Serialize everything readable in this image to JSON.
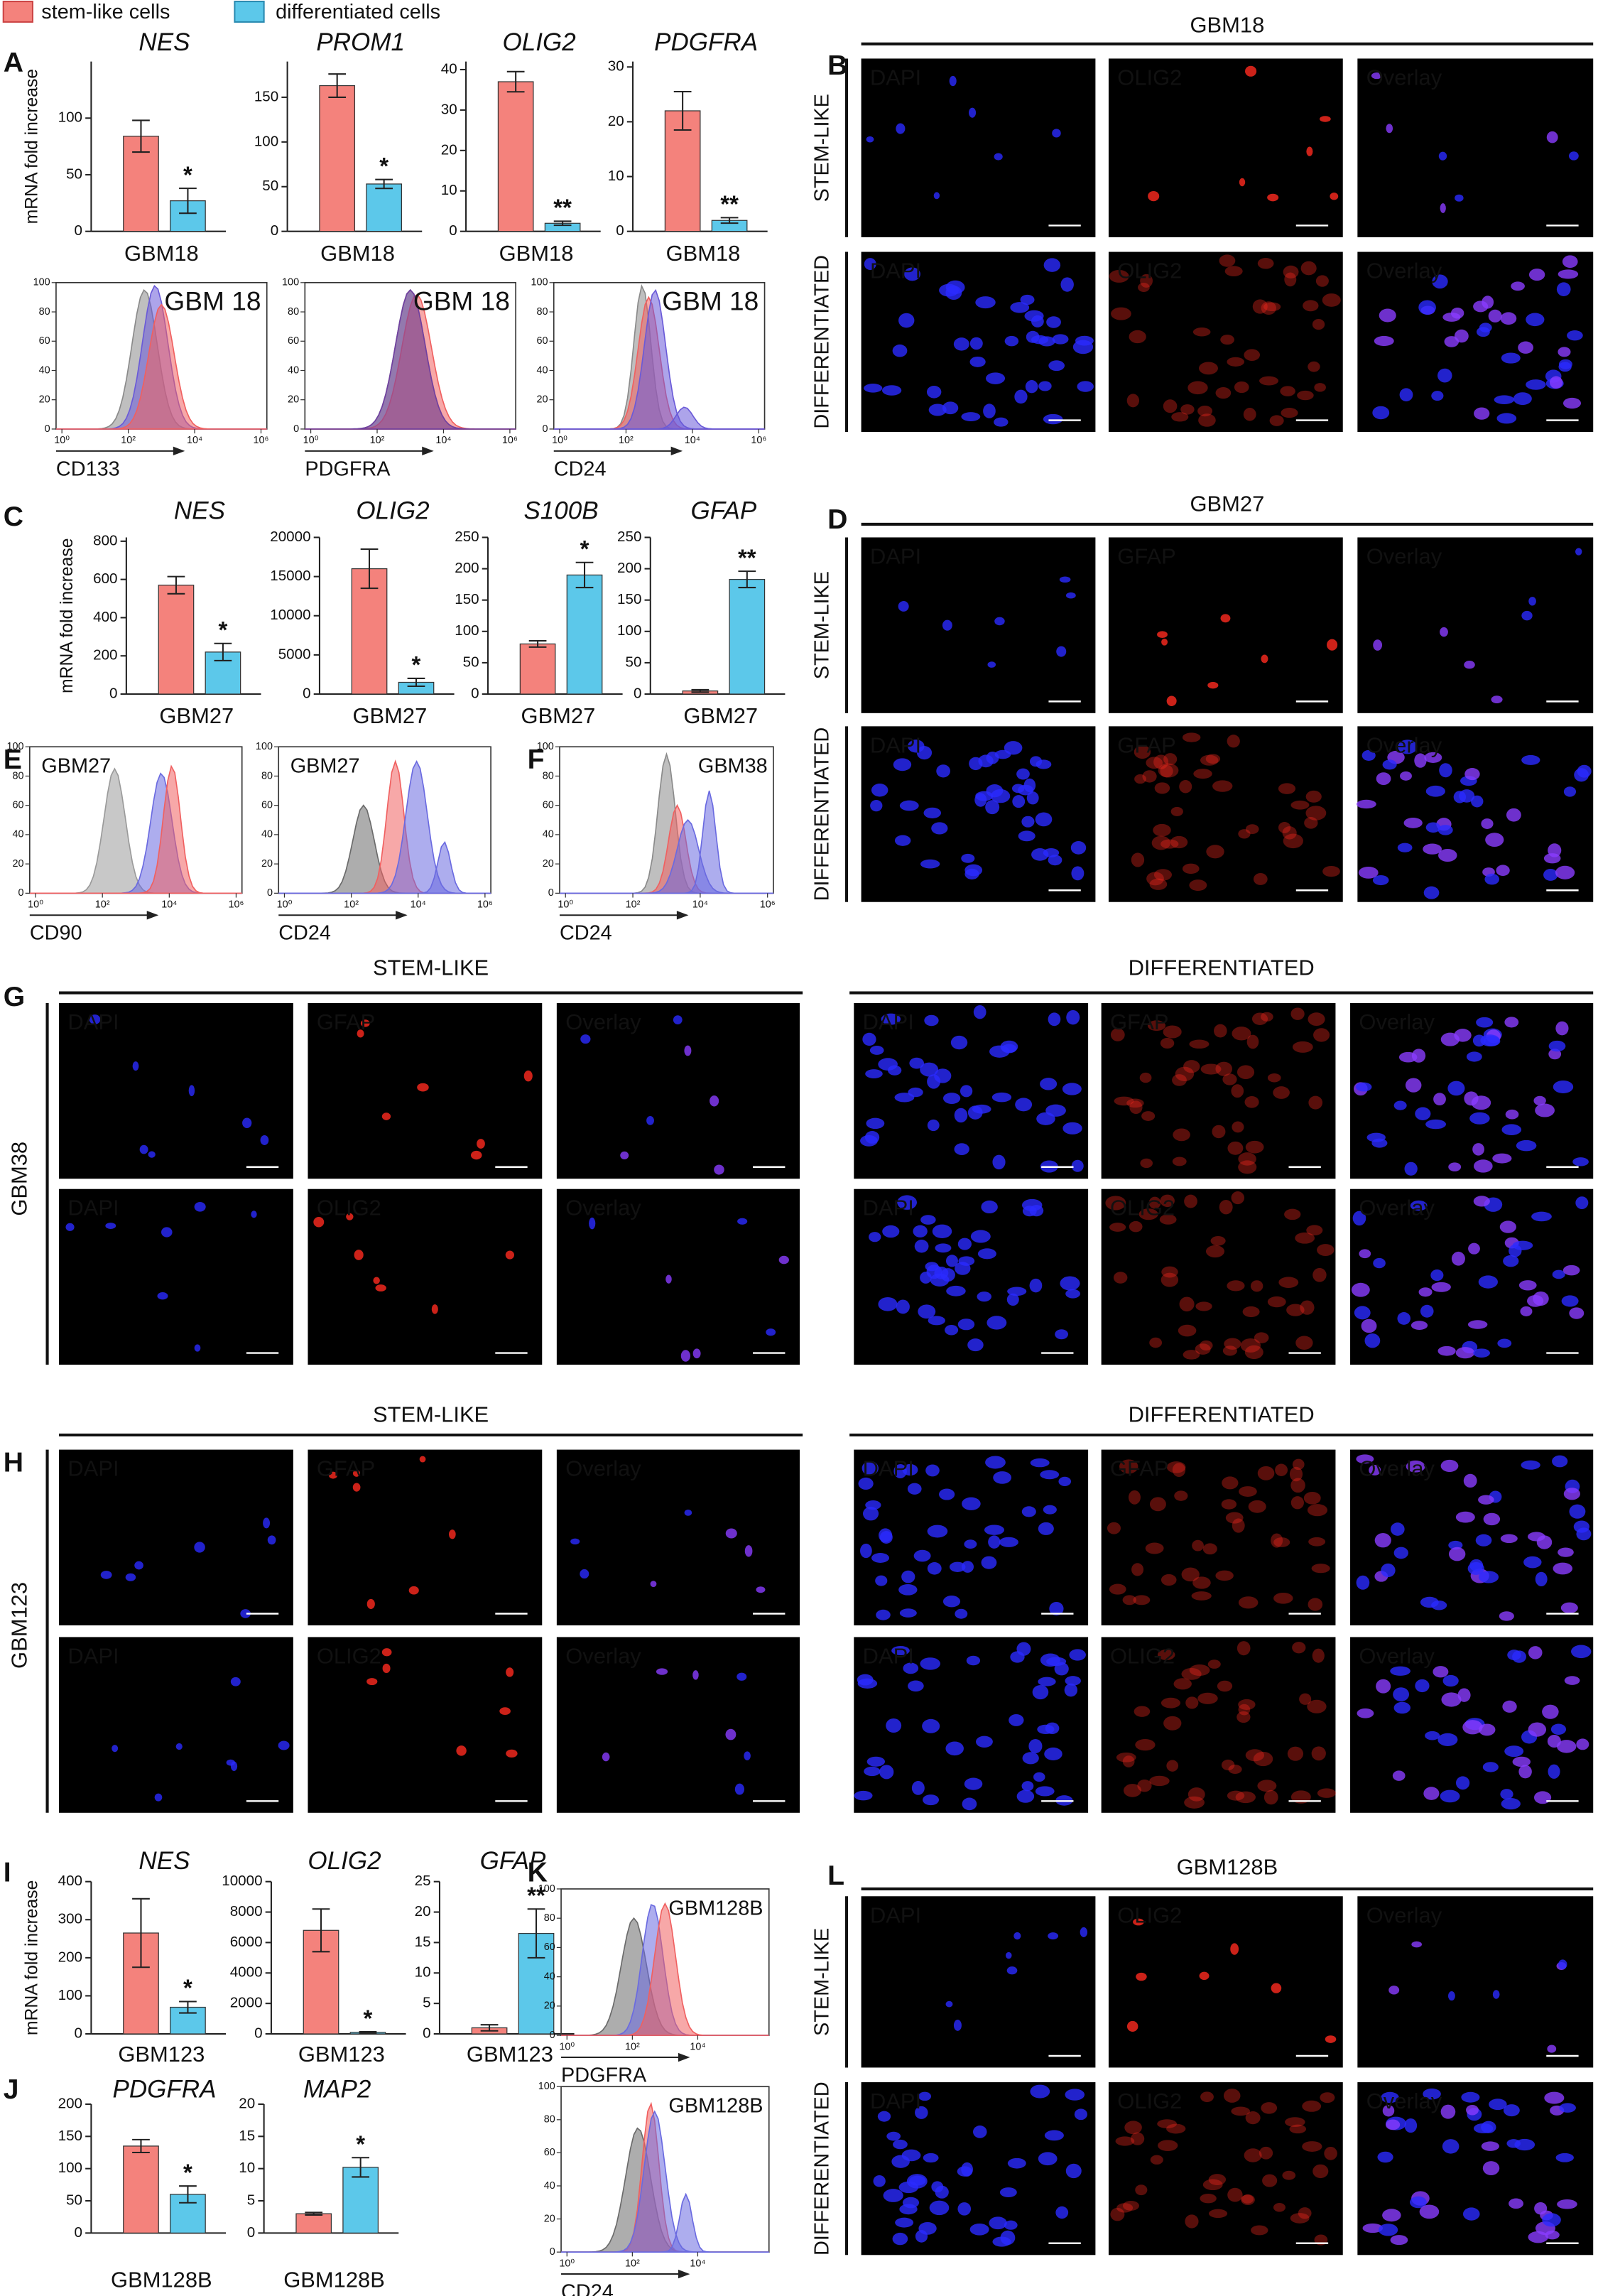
{
  "chart_data": [
    {
      "type": "bar",
      "title": "NES",
      "ylabel": "mRNA fold increase",
      "categories": [
        "GBM18"
      ],
      "ylim": [
        0,
        150
      ],
      "yticks": [
        0,
        50,
        100
      ],
      "annotation": "*",
      "series": [
        {
          "name": "stem-like cells",
          "color": "#f4827c",
          "values": [
            84
          ],
          "errors": [
            14
          ]
        },
        {
          "name": "differentiated cells",
          "color": "#5cc8ea",
          "values": [
            27
          ],
          "errors": [
            11
          ]
        }
      ]
    },
    {
      "type": "bar",
      "title": "PROM1",
      "categories": [
        "GBM18"
      ],
      "ylim": [
        0,
        190
      ],
      "yticks": [
        0,
        50,
        100,
        150
      ],
      "annotation": "*",
      "series": [
        {
          "color": "#f4827c",
          "values": [
            163
          ],
          "errors": [
            13
          ]
        },
        {
          "color": "#5cc8ea",
          "values": [
            53
          ],
          "errors": [
            5
          ]
        }
      ]
    },
    {
      "type": "bar",
      "title": "OLIG2",
      "categories": [
        "GBM18"
      ],
      "ylim": [
        0,
        42
      ],
      "yticks": [
        0,
        10,
        20,
        30,
        40
      ],
      "annotation": "**",
      "series": [
        {
          "color": "#f4827c",
          "values": [
            37
          ],
          "errors": [
            2.5
          ]
        },
        {
          "color": "#5cc8ea",
          "values": [
            2
          ],
          "errors": [
            0.5
          ]
        }
      ]
    },
    {
      "type": "bar",
      "title": "PDGFRA",
      "categories": [
        "GBM18"
      ],
      "ylim": [
        0,
        31
      ],
      "yticks": [
        0,
        10,
        20,
        30
      ],
      "annotation": "**",
      "series": [
        {
          "color": "#f4827c",
          "values": [
            22
          ],
          "errors": [
            3.5
          ]
        },
        {
          "color": "#5cc8ea",
          "values": [
            2
          ],
          "errors": [
            0.5
          ]
        }
      ]
    },
    {
      "type": "bar",
      "title": "NES",
      "ylabel": "mRNA fold increase",
      "categories": [
        "GBM27"
      ],
      "ylim": [
        0,
        820
      ],
      "yticks": [
        0,
        200,
        400,
        600,
        800
      ],
      "annotation": "*",
      "series": [
        {
          "color": "#f4827c",
          "values": [
            570
          ],
          "errors": [
            45
          ]
        },
        {
          "color": "#5cc8ea",
          "values": [
            220
          ],
          "errors": [
            45
          ]
        }
      ]
    },
    {
      "type": "bar",
      "title": "OLIG2",
      "categories": [
        "GBM27"
      ],
      "ylim": [
        0,
        20000
      ],
      "yticks": [
        0,
        5000,
        10000,
        15000,
        20000
      ],
      "annotation": "*",
      "series": [
        {
          "color": "#f4827c",
          "values": [
            16000
          ],
          "errors": [
            2500
          ]
        },
        {
          "color": "#5cc8ea",
          "values": [
            1500
          ],
          "errors": [
            500
          ]
        }
      ]
    },
    {
      "type": "bar",
      "title": "S100B",
      "categories": [
        "GBM27"
      ],
      "ylim": [
        0,
        250
      ],
      "yticks": [
        0,
        50,
        100,
        150,
        200,
        250
      ],
      "annotation": "*",
      "series": [
        {
          "color": "#f4827c",
          "values": [
            80
          ],
          "errors": [
            5
          ]
        },
        {
          "color": "#5cc8ea",
          "values": [
            190
          ],
          "errors": [
            20
          ]
        }
      ]
    },
    {
      "type": "bar",
      "title": "GFAP",
      "categories": [
        "GBM27"
      ],
      "ylim": [
        0,
        250
      ],
      "yticks": [
        0,
        50,
        100,
        150,
        200,
        250
      ],
      "annotation": "**",
      "series": [
        {
          "color": "#f4827c",
          "values": [
            5
          ],
          "errors": [
            2
          ]
        },
        {
          "color": "#5cc8ea",
          "values": [
            183
          ],
          "errors": [
            13
          ]
        }
      ]
    },
    {
      "type": "bar",
      "title": "NES",
      "ylabel": "mRNA fold increase",
      "categories": [
        "GBM123"
      ],
      "ylim": [
        0,
        400
      ],
      "yticks": [
        0,
        100,
        200,
        300,
        400
      ],
      "annotation": "*",
      "series": [
        {
          "color": "#f4827c",
          "values": [
            265
          ],
          "errors": [
            90
          ]
        },
        {
          "color": "#5cc8ea",
          "values": [
            70
          ],
          "errors": [
            15
          ]
        }
      ]
    },
    {
      "type": "bar",
      "title": "OLIG2",
      "categories": [
        "GBM123"
      ],
      "ylim": [
        0,
        10000
      ],
      "yticks": [
        0,
        2000,
        4000,
        6000,
        8000,
        10000
      ],
      "annotation": "*",
      "series": [
        {
          "color": "#f4827c",
          "values": [
            6800
          ],
          "errors": [
            1400
          ]
        },
        {
          "color": "#5cc8ea",
          "values": [
            100
          ],
          "errors": [
            40
          ]
        }
      ]
    },
    {
      "type": "bar",
      "title": "GFAP",
      "categories": [
        "GBM123"
      ],
      "ylim": [
        0,
        25
      ],
      "yticks": [
        0,
        5,
        10,
        15,
        20,
        25
      ],
      "annotation": "**",
      "series": [
        {
          "color": "#f4827c",
          "values": [
            1
          ],
          "errors": [
            0.5
          ]
        },
        {
          "color": "#5cc8ea",
          "values": [
            16.5
          ],
          "errors": [
            4
          ]
        }
      ]
    },
    {
      "type": "bar",
      "title": "PDGFRA",
      "categories": [
        "GBM128B"
      ],
      "ylim": [
        0,
        200
      ],
      "yticks": [
        0,
        50,
        100,
        150,
        200
      ],
      "annotation": "*",
      "series": [
        {
          "color": "#f4827c",
          "values": [
            135
          ],
          "errors": [
            10
          ]
        },
        {
          "color": "#5cc8ea",
          "values": [
            60
          ],
          "errors": [
            13
          ]
        }
      ]
    },
    {
      "type": "bar",
      "title": "MAP2",
      "categories": [
        "GBM128B"
      ],
      "ylim": [
        0,
        20
      ],
      "yticks": [
        0,
        5,
        10,
        15,
        20
      ],
      "annotation": "*",
      "series": [
        {
          "color": "#f4827c",
          "values": [
            3
          ],
          "errors": [
            0.2
          ]
        },
        {
          "color": "#5cc8ea",
          "values": [
            10.2
          ],
          "errors": [
            1.5
          ]
        }
      ]
    }
  ],
  "flow_panels": [
    {
      "label": "GBM 18",
      "marker": "CD133",
      "yticks": [
        0,
        20,
        40,
        60,
        80,
        100
      ],
      "xticks": [
        {
          "value": 1,
          "label": "10⁰"
        },
        {
          "value": 100,
          "label": "10²"
        },
        {
          "value": 10000,
          "label": "10⁴"
        },
        {
          "value": 1000000,
          "label": "10⁶"
        }
      ]
    },
    {
      "label": "GBM 18",
      "marker": "PDGFRA",
      "yticks": [
        0,
        20,
        40,
        60,
        80,
        100
      ],
      "xticks": [
        {
          "value": 1,
          "label": "10⁰"
        },
        {
          "value": 100,
          "label": "10²"
        },
        {
          "value": 10000,
          "label": "10⁴"
        },
        {
          "value": 1000000,
          "label": "10⁶"
        }
      ]
    },
    {
      "label": "GBM 18",
      "marker": "CD24",
      "yticks": [
        0,
        20,
        40,
        60,
        80,
        100
      ],
      "xticks": [
        {
          "value": 1,
          "label": "10⁰"
        },
        {
          "value": 100,
          "label": "10²"
        },
        {
          "value": 10000,
          "label": "10⁴"
        },
        {
          "value": 1000000,
          "label": "10⁶"
        }
      ]
    },
    {
      "label": "GBM27",
      "marker": "CD90",
      "yticks": [
        0,
        20,
        40,
        60,
        80,
        100
      ],
      "xticks": [
        {
          "value": 1,
          "label": "10⁰"
        },
        {
          "value": 100,
          "label": "10²"
        },
        {
          "value": 10000,
          "label": "10⁴"
        },
        {
          "value": 1000000,
          "label": "10⁶"
        }
      ]
    },
    {
      "label": "GBM27",
      "marker": "CD24",
      "yticks": [
        0,
        20,
        40,
        60,
        80,
        100
      ],
      "xticks": [
        {
          "value": 1,
          "label": "10⁰"
        },
        {
          "value": 100,
          "label": "10²"
        },
        {
          "value": 10000,
          "label": "10⁴"
        },
        {
          "value": 1000000,
          "label": "10⁶"
        }
      ]
    },
    {
      "label": "GBM38",
      "marker": "CD24",
      "yticks": [
        0,
        20,
        40,
        60,
        80,
        100
      ],
      "xticks": [
        {
          "value": 1,
          "label": "10⁰"
        },
        {
          "value": 100,
          "label": "10²"
        },
        {
          "value": 10000,
          "label": "10⁴"
        },
        {
          "value": 1000000,
          "label": "10⁶"
        }
      ]
    },
    {
      "label": "GBM128B",
      "marker": "PDGFRA",
      "yticks": [
        0,
        20,
        40,
        60,
        80,
        100
      ],
      "xticks": [
        {
          "value": 1,
          "label": "10⁰"
        },
        {
          "value": 100,
          "label": "10²"
        },
        {
          "value": 10000,
          "label": "10⁴"
        }
      ]
    },
    {
      "label": "GBM128B",
      "marker": "CD24",
      "yticks": [
        0,
        20,
        40,
        60,
        80,
        100
      ],
      "xticks": [
        {
          "value": 1,
          "label": "10⁰"
        },
        {
          "value": 100,
          "label": "10²"
        },
        {
          "value": 10000,
          "label": "10⁴"
        }
      ]
    }
  ],
  "image_panels": [
    {
      "title": "GBM18",
      "rows": [
        {
          "label": "STEM-LIKE",
          "tiles": [
            "DAPI",
            "OLIG2",
            "Overlay"
          ]
        },
        {
          "label": "DIFFERENTIATED",
          "tiles": [
            "DAPI",
            "OLIG2",
            "Overlay"
          ]
        }
      ]
    },
    {
      "title": "GBM27",
      "rows": [
        {
          "label": "STEM-LIKE",
          "tiles": [
            "DAPI",
            "GFAP",
            "Overlay"
          ]
        },
        {
          "label": "DIFFERENTIATED",
          "tiles": [
            "DAPI",
            "GFAP",
            "Overlay"
          ]
        }
      ]
    },
    {
      "title": "GBM128B",
      "rows": [
        {
          "label": "STEM-LIKE",
          "tiles": [
            "DAPI",
            "OLIG2",
            "Overlay"
          ]
        },
        {
          "label": "DIFFERENTIATED",
          "tiles": [
            "DAPI",
            "OLIG2",
            "Overlay"
          ]
        }
      ]
    }
  ],
  "image_grids": [
    {
      "sample": "GBM38",
      "groups": [
        {
          "title": "STEM-LIKE",
          "rows": [
            [
              "DAPI",
              "GFAP",
              "Overlay"
            ],
            [
              "DAPI",
              "OLIG2",
              "Overlay"
            ]
          ]
        },
        {
          "title": "DIFFERENTIATED",
          "rows": [
            [
              "DAPI",
              "GFAP",
              "Overlay"
            ],
            [
              "DAPI",
              "OLIG2",
              "Overlay"
            ]
          ]
        }
      ]
    },
    {
      "sample": "GBM123",
      "groups": [
        {
          "title": "STEM-LIKE",
          "rows": [
            [
              "DAPI",
              "GFAP",
              "Overlay"
            ],
            [
              "DAPI",
              "OLIG2",
              "Overlay"
            ]
          ]
        },
        {
          "title": "DIFFERENTIATED",
          "rows": [
            [
              "DAPI",
              "GFAP",
              "Overlay"
            ],
            [
              "DAPI",
              "OLIG2",
              "Overlay"
            ]
          ]
        }
      ]
    }
  ],
  "panel_letters": [
    "A",
    "B",
    "C",
    "D",
    "E",
    "F",
    "G",
    "H",
    "I",
    "J",
    "K",
    "L"
  ]
}
